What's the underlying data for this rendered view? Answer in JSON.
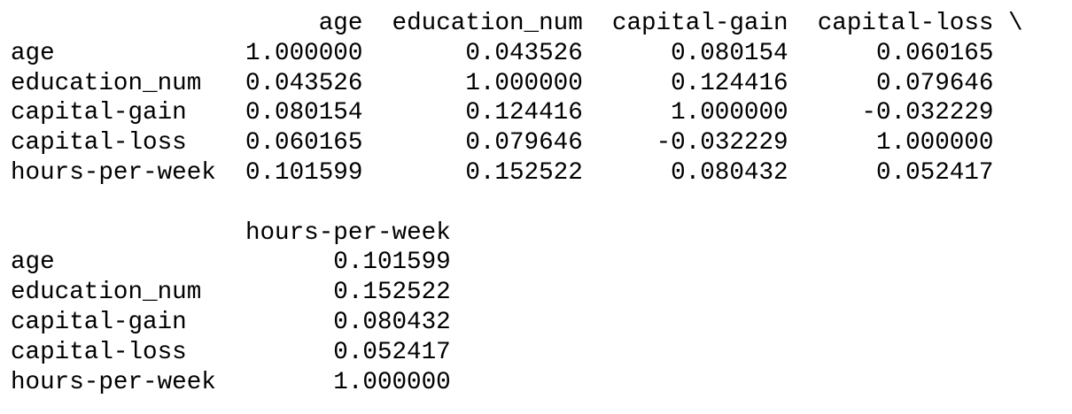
{
  "blocks": [
    {
      "columns": [
        "age",
        "education_num",
        "capital-gain",
        "capital-loss"
      ],
      "continuation": "\\",
      "rows": [
        {
          "label": "age",
          "values": [
            "1.000000",
            "0.043526",
            "0.080154",
            "0.060165"
          ]
        },
        {
          "label": "education_num",
          "values": [
            "0.043526",
            "1.000000",
            "0.124416",
            "0.079646"
          ]
        },
        {
          "label": "capital-gain",
          "values": [
            "0.080154",
            "0.124416",
            "1.000000",
            "-0.032229"
          ]
        },
        {
          "label": "capital-loss",
          "values": [
            "0.060165",
            "0.079646",
            "-0.032229",
            "1.000000"
          ]
        },
        {
          "label": "hours-per-week",
          "values": [
            "0.101599",
            "0.152522",
            "0.080432",
            "0.052417"
          ]
        }
      ]
    },
    {
      "columns": [
        "hours-per-week"
      ],
      "rows": [
        {
          "label": "age",
          "values": [
            "0.101599"
          ]
        },
        {
          "label": "education_num",
          "values": [
            "0.152522"
          ]
        },
        {
          "label": "capital-gain",
          "values": [
            "0.080432"
          ]
        },
        {
          "label": "capital-loss",
          "values": [
            "0.052417"
          ]
        },
        {
          "label": "hours-per-week",
          "values": [
            "1.000000"
          ]
        }
      ]
    }
  ]
}
